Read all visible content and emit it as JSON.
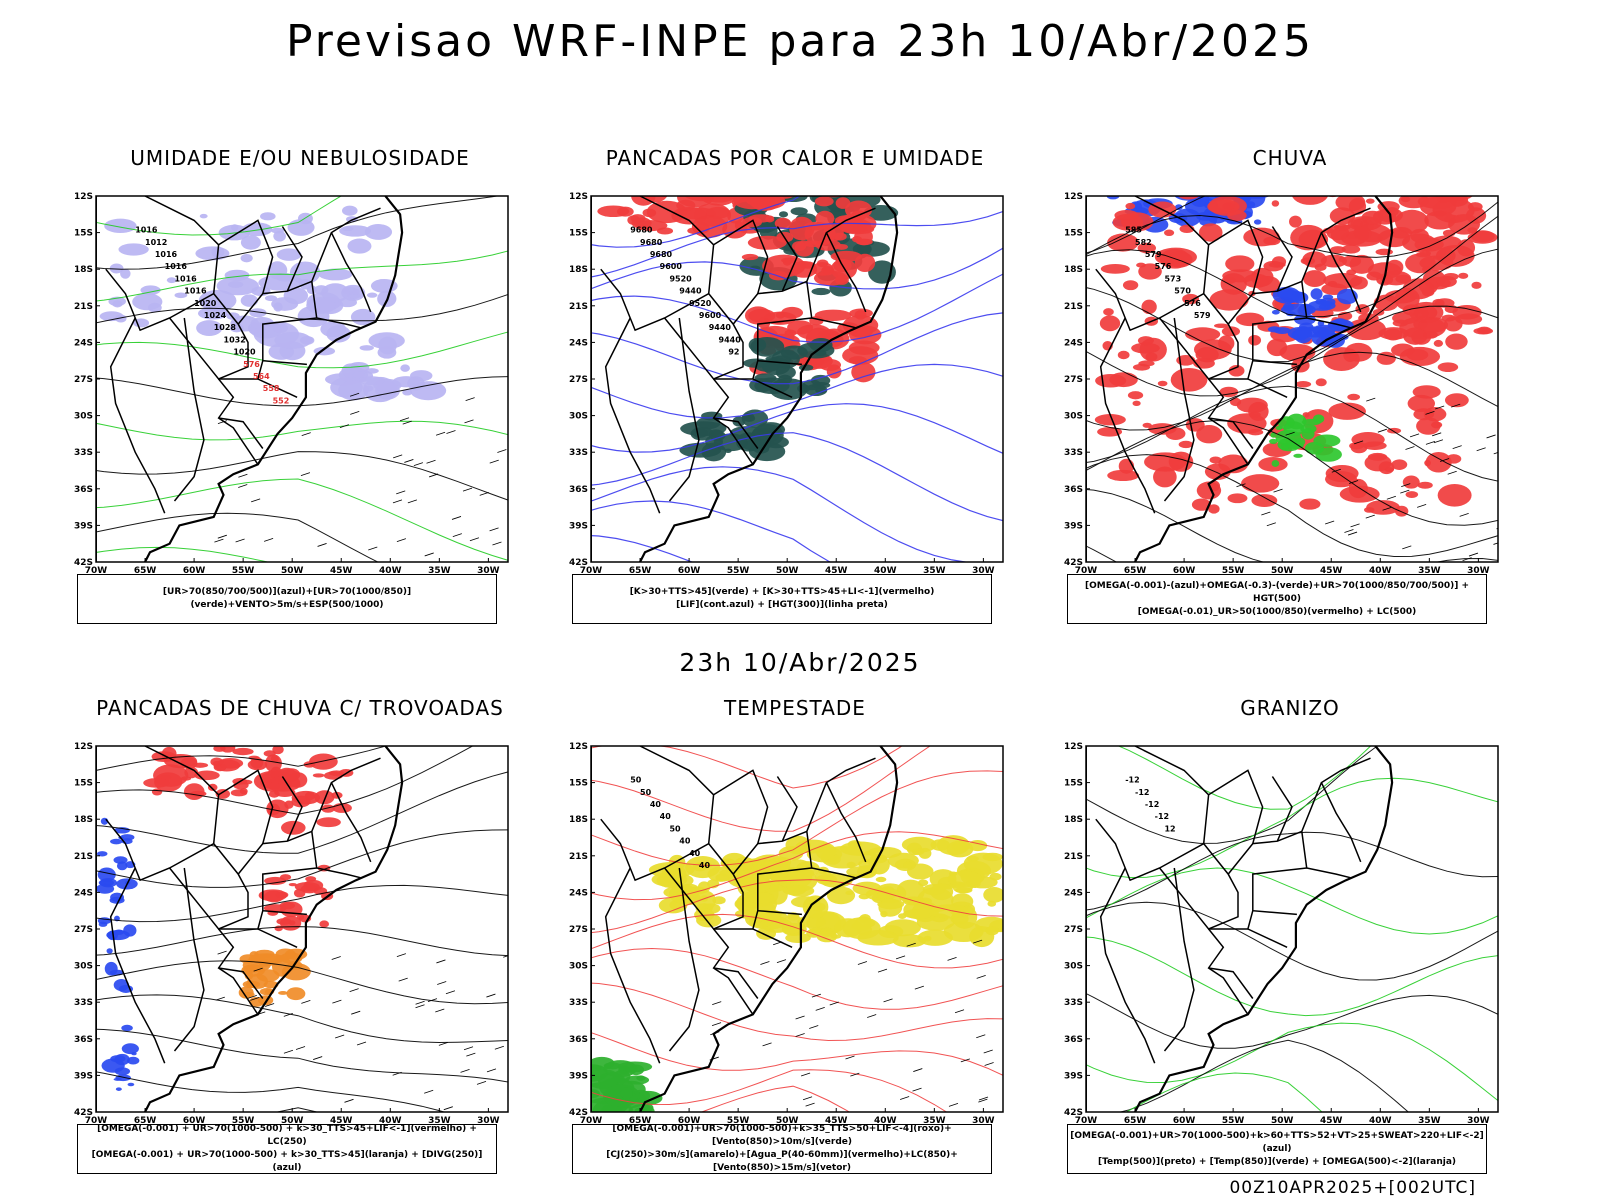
{
  "header": {
    "title": "Previsao WRF-INPE  para 23h 10/Abr/2025",
    "subtitle": "23h 10/Abr/2025",
    "stamp": "00Z10APR2025+[002UTC]"
  },
  "axes": {
    "lat_labels": [
      "12S",
      "15S",
      "18S",
      "21S",
      "24S",
      "27S",
      "30S",
      "33S",
      "36S",
      "39S",
      "42S"
    ],
    "lon_labels": [
      "70W",
      "65W",
      "60W",
      "55W",
      "50W",
      "45W",
      "40W",
      "35W",
      "30W"
    ]
  },
  "panels": [
    {
      "id": "umidade",
      "title": "UMIDADE E/OU NEBULOSIDADE",
      "legend": [
        "[UR>70(850/700/500)](azul)+[UR>70(1000/850)](verde)+VENTO>5m/s+ESP(500/1000)"
      ],
      "fills": [
        {
          "color": "#b9b4f2",
          "label": "UR>70 850/700/500"
        }
      ],
      "contour_labels": [
        "1016",
        "1012",
        "1016",
        "1016",
        "1016",
        "1016",
        "1020",
        "1024",
        "1028",
        "1032",
        "1020",
        "576",
        "564",
        "558",
        "552"
      ]
    },
    {
      "id": "pancadas-calor",
      "title": "PANCADAS POR CALOR E UMIDADE",
      "legend": [
        "[K>30+TTS>45](verde) + [K>30+TTS>45+LI<-1](vermelho)",
        "[LIF](cont.azul) + [HGT(300)](linha preta)"
      ],
      "fills": [
        {
          "color": "#f03c3c",
          "label": "vermelho"
        },
        {
          "color": "#24524e",
          "label": "verde"
        }
      ],
      "contour_labels": [
        "9680",
        "9680",
        "9680",
        "9600",
        "9520",
        "9440",
        "9520",
        "9600",
        "9440",
        "9440",
        "92"
      ]
    },
    {
      "id": "chuva",
      "title": "CHUVA",
      "legend": [
        "[OMEGA(-0.001)-(azul)+OMEGA(-0.3)-(verde)+UR>70(1000/850/700/500)] + HGT(500)",
        "[OMEGA(-0.01)_UR>50(1000/850)(vermelho) + LC(500)"
      ],
      "fills": [
        {
          "color": "#f03c3c",
          "label": "vermelho"
        },
        {
          "color": "#2a4af0",
          "label": "azul"
        },
        {
          "color": "#2ec72e",
          "label": "verde"
        }
      ],
      "contour_labels": [
        "585",
        "582",
        "579",
        "576",
        "573",
        "570",
        "576",
        "579"
      ]
    },
    {
      "id": "pancadas-trovoadas",
      "title": "PANCADAS DE CHUVA C/ TROVOADAS",
      "legend": [
        "[OMEGA(-0.001) + UR>70(1000-500) + k>30_TTS>45+LIF<-1](vermelho) + LC(250)",
        "[OMEGA(-0.001) + UR>70(1000-500) + k>30_TTS>45](laranja) + [DIVG(250)](azul)"
      ],
      "fills": [
        {
          "color": "#f03c3c",
          "label": "vermelho"
        },
        {
          "color": "#f08c28",
          "label": "laranja"
        },
        {
          "color": "#2a4af0",
          "label": "azul"
        }
      ],
      "contour_labels": []
    },
    {
      "id": "tempestade",
      "title": "TEMPESTADE",
      "legend": [
        "[OMEGA(-0.001)+UR>70(1000-500)+k>35_TTS>50+LIF<-4](roxo)+[Vento(850)>10m/s](verde)",
        "[CJ(250)>30m/s](amarelo)+[Agua_P(40-60mm)](vermelho)+LC(850)+[Vento(850)>15m/s](vetor)"
      ],
      "fills": [
        {
          "color": "#e8dc2e",
          "label": "amarelo"
        },
        {
          "color": "#2eb02e",
          "label": "verde"
        }
      ],
      "contour_labels": [
        "50",
        "50",
        "40",
        "40",
        "50",
        "40",
        "40",
        "40"
      ]
    },
    {
      "id": "granizo",
      "title": "GRANIZO",
      "legend": [
        "[OMEGA(-0.001)+UR>70(1000-500)+k>60+TTS>52+VT>25+SWEAT>220+LIF<-2](azul)",
        "[Temp(500)](preto) + [Temp(850)](verde) + [OMEGA(500)<-2](laranja)"
      ],
      "fills": [
        {
          "color": "#2ed12e",
          "label": "verde"
        }
      ],
      "contour_labels": [
        "-12",
        "-12",
        "-12",
        "-12",
        "12"
      ]
    }
  ]
}
